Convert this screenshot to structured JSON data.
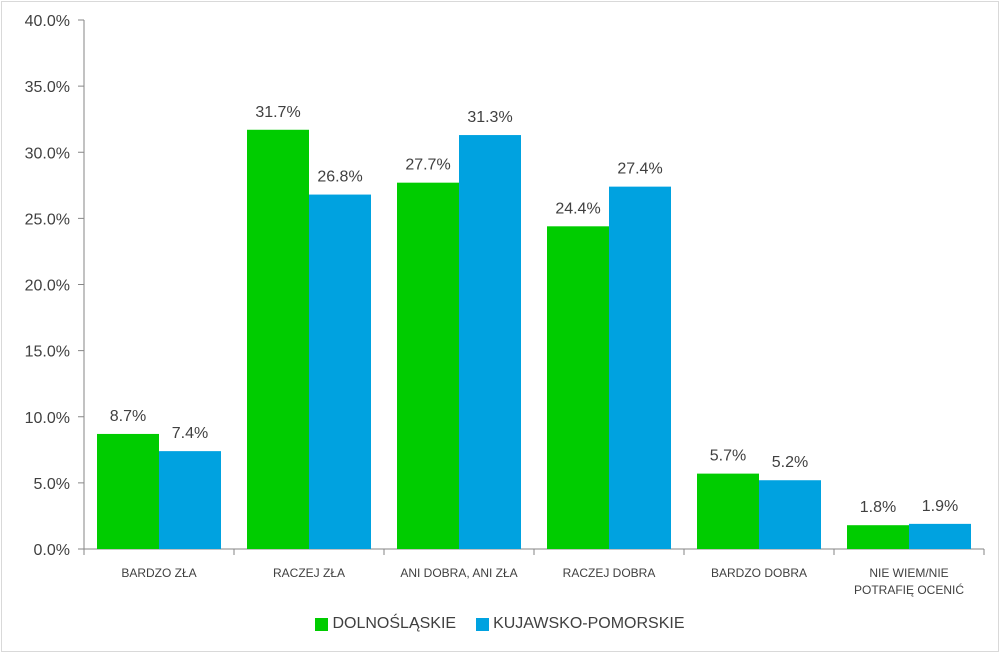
{
  "chart_data": {
    "type": "bar",
    "categories": [
      [
        "BARDZO ZŁA"
      ],
      [
        "RACZEJ ZŁA"
      ],
      [
        "ANI DOBRA, ANI ZŁA"
      ],
      [
        "RACZEJ DOBRA"
      ],
      [
        "BARDZO DOBRA"
      ],
      [
        "NIE WIEM/NIE",
        "POTRAFIĘ OCENIĆ"
      ]
    ],
    "series": [
      {
        "name": "DOLNOŚLĄSKIE",
        "color": "#00cc00",
        "values": [
          8.7,
          31.7,
          27.7,
          24.4,
          5.7,
          1.8
        ],
        "labels": [
          "8.7%",
          "31.7%",
          "27.7%",
          "24.4%",
          "5.7%",
          "1.8%"
        ]
      },
      {
        "name": "KUJAWSKO-POMORSKIE",
        "color": "#00a2e0",
        "values": [
          7.4,
          26.8,
          31.3,
          27.4,
          5.2,
          1.9
        ],
        "labels": [
          "7.4%",
          "26.8%",
          "31.3%",
          "27.4%",
          "5.2%",
          "1.9%"
        ]
      }
    ],
    "y_ticks": [
      "0.0%",
      "5.0%",
      "10.0%",
      "15.0%",
      "20.0%",
      "25.0%",
      "30.0%",
      "35.0%",
      "40.0%"
    ],
    "ylim": [
      0,
      40
    ],
    "grid": false,
    "legend_position": "bottom"
  }
}
